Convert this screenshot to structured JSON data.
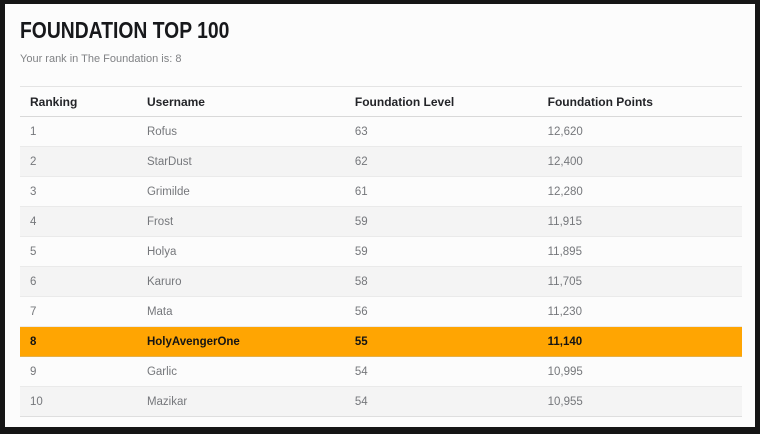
{
  "header": {
    "title": "FOUNDATION TOP 100",
    "rank_note": "Your rank in The Foundation is: 8"
  },
  "table": {
    "columns": [
      "Ranking",
      "Username",
      "Foundation Level",
      "Foundation Points"
    ],
    "rows": [
      {
        "rank": "1",
        "username": "Rofus",
        "level": "63",
        "points": "12,620",
        "highlight": false
      },
      {
        "rank": "2",
        "username": "StarDust",
        "level": "62",
        "points": "12,400",
        "highlight": false
      },
      {
        "rank": "3",
        "username": "Grimilde",
        "level": "61",
        "points": "12,280",
        "highlight": false
      },
      {
        "rank": "4",
        "username": "Frost",
        "level": "59",
        "points": "11,915",
        "highlight": false
      },
      {
        "rank": "5",
        "username": "Holya",
        "level": "59",
        "points": "11,895",
        "highlight": false
      },
      {
        "rank": "6",
        "username": "Karuro",
        "level": "58",
        "points": "11,705",
        "highlight": false
      },
      {
        "rank": "7",
        "username": "Mata",
        "level": "56",
        "points": "11,230",
        "highlight": false
      },
      {
        "rank": "8",
        "username": "HolyAvengerOne",
        "level": "55",
        "points": "11,140",
        "highlight": true
      },
      {
        "rank": "9",
        "username": "Garlic",
        "level": "54",
        "points": "10,995",
        "highlight": false
      },
      {
        "rank": "10",
        "username": "Mazikar",
        "level": "54",
        "points": "10,955",
        "highlight": false
      }
    ],
    "highlighted_rank": "8"
  },
  "colors": {
    "highlight_row_bg": "#FFA502",
    "highlight_row_text": "#141414",
    "frame_border": "#151515"
  }
}
